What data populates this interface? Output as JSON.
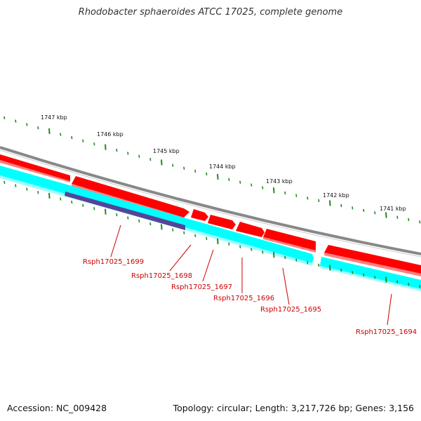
{
  "title": "Rhodobacter sphaeroides ATCC 17025, complete genome",
  "footer": {
    "accession": "Accession: NC_009428",
    "summary": "Topology: circular; Length: 3,217,726 bp; Genes: 3,156"
  },
  "colors": {
    "backbone": "#888888",
    "forward_cds": "#ff0000",
    "forward_shadow": "#ff8080",
    "reverse_cds": "#00ffff",
    "reverse_shadow": "#99ffff",
    "feature": "#554499",
    "tick": "#228822",
    "label": "#cc0000"
  },
  "kbp_labels": [
    "1747 kbp",
    "1746 kbp",
    "1745 kbp",
    "1744 kbp",
    "1743 kbp",
    "1742 kbp",
    "1741 kbp"
  ],
  "gene_labels": [
    "Rsph17025_1699",
    "Rsph17025_1698",
    "Rsph17025_1697",
    "Rsph17025_1696",
    "Rsph17025_1695",
    "Rsph17025_1694"
  ]
}
